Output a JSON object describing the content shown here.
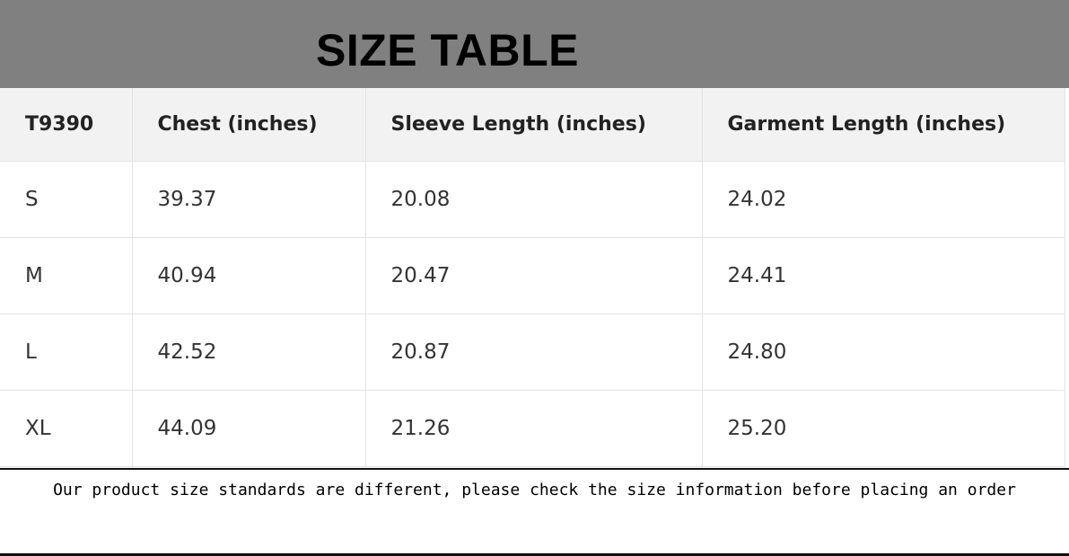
{
  "title": "SIZE TABLE",
  "table": {
    "headers": [
      "T9390",
      "Chest (inches)",
      "Sleeve Length (inches)",
      "Garment Length (inches)"
    ],
    "rows": [
      [
        "S",
        "39.37",
        "20.08",
        "24.02"
      ],
      [
        "M",
        "40.94",
        "20.47",
        "24.41"
      ],
      [
        "L",
        "42.52",
        "20.87",
        "24.80"
      ],
      [
        "XL",
        "44.09",
        "21.26",
        "25.20"
      ]
    ]
  },
  "footer_note": "Our product size standards are different, please check the size information before placing an order"
}
